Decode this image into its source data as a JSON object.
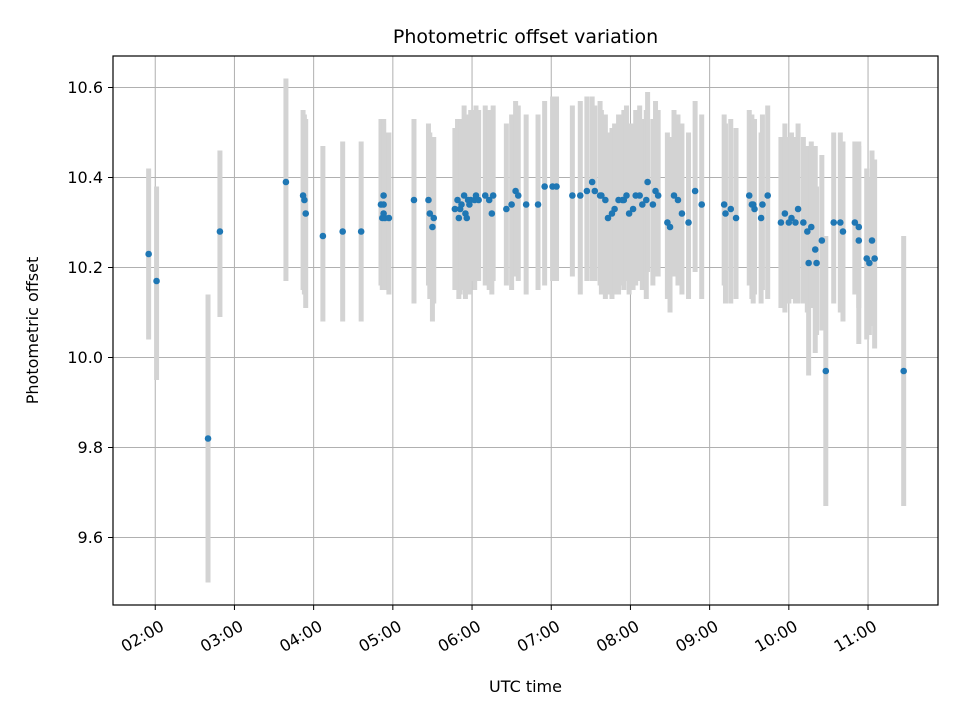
{
  "chart_data": {
    "type": "scatter",
    "title": "Photometric offset variation",
    "xlabel": "UTC time",
    "ylabel": "Photometric offset",
    "x_unit": "UTC time (HH:MM)",
    "x_ticks": [
      "02:00",
      "03:00",
      "04:00",
      "05:00",
      "06:00",
      "07:00",
      "08:00",
      "09:00",
      "10:00",
      "11:00"
    ],
    "y_ticks": [
      "9.6",
      "9.8",
      "10.0",
      "10.2",
      "10.4",
      "10.6"
    ],
    "xlim": [
      "01:28",
      "11:53"
    ],
    "ylim": [
      9.45,
      10.67
    ],
    "grid": true,
    "colors": {
      "points": "#1f77b4",
      "errorbars": "#d3d3d3",
      "grid": "#b0b0b0"
    },
    "series": [
      {
        "x": [
          "01:55",
          "02:01",
          "02:40",
          "02:49",
          "03:39",
          "03:52",
          "03:53",
          "03:54",
          "04:07",
          "04:22",
          "04:36",
          "04:51",
          "04:52",
          "04:53",
          "04:53",
          "04:53",
          "04:54",
          "04:57",
          "05:16",
          "05:27",
          "05:28",
          "05:30",
          "05:31",
          "05:47",
          "05:49",
          "05:50",
          "05:51",
          "05:52",
          "05:54",
          "05:55",
          "05:56",
          "05:57",
          "05:58",
          "05:59",
          "06:02",
          "06:03",
          "06:05",
          "06:10",
          "06:13",
          "06:15",
          "06:16",
          "06:26",
          "06:30",
          "06:33",
          "06:35",
          "06:41",
          "06:50",
          "06:55",
          "07:01",
          "07:04",
          "07:16",
          "07:22",
          "07:27",
          "07:31",
          "07:33",
          "07:37",
          "07:38",
          "07:41",
          "07:43",
          "07:46",
          "07:48",
          "07:51",
          "07:54",
          "07:55",
          "07:57",
          "07:59",
          "08:02",
          "08:04",
          "08:07",
          "08:09",
          "08:12",
          "08:13",
          "08:17",
          "08:19",
          "08:21",
          "08:28",
          "08:30",
          "08:33",
          "08:36",
          "08:39",
          "08:44",
          "08:49",
          "08:54",
          "09:11",
          "09:12",
          "09:16",
          "09:20",
          "09:30",
          "09:32",
          "09:33",
          "09:34",
          "09:39",
          "09:40",
          "09:44",
          "09:54",
          "09:57",
          "10:00",
          "10:02",
          "10:05",
          "10:07",
          "10:11",
          "10:14",
          "10:15",
          "10:17",
          "10:20",
          "10:21",
          "10:25",
          "10:28",
          "10:34",
          "10:39",
          "10:41",
          "10:50",
          "10:53",
          "10:53",
          "10:59",
          "11:01",
          "11:03",
          "11:05",
          "11:27"
        ],
        "y": [
          10.23,
          10.17,
          9.82,
          10.28,
          10.39,
          10.36,
          10.35,
          10.32,
          10.27,
          10.28,
          10.28,
          10.34,
          10.31,
          10.36,
          10.32,
          10.34,
          10.31,
          10.31,
          10.35,
          10.35,
          10.32,
          10.29,
          10.31,
          10.33,
          10.35,
          10.31,
          10.33,
          10.34,
          10.36,
          10.32,
          10.31,
          10.35,
          10.34,
          10.35,
          10.35,
          10.36,
          10.35,
          10.36,
          10.35,
          10.32,
          10.36,
          10.33,
          10.34,
          10.37,
          10.36,
          10.34,
          10.34,
          10.38,
          10.38,
          10.38,
          10.36,
          10.36,
          10.37,
          10.39,
          10.37,
          10.36,
          10.36,
          10.35,
          10.31,
          10.32,
          10.33,
          10.35,
          10.35,
          10.35,
          10.36,
          10.32,
          10.33,
          10.36,
          10.36,
          10.34,
          10.35,
          10.39,
          10.34,
          10.37,
          10.36,
          10.3,
          10.29,
          10.36,
          10.35,
          10.32,
          10.3,
          10.37,
          10.34,
          10.34,
          10.32,
          10.33,
          10.31,
          10.36,
          10.34,
          10.34,
          10.33,
          10.31,
          10.34,
          10.36,
          10.3,
          10.32,
          10.3,
          10.31,
          10.3,
          10.33,
          10.3,
          10.28,
          10.21,
          10.29,
          10.24,
          10.21,
          10.26,
          9.97,
          10.3,
          10.3,
          10.28,
          10.3,
          10.26,
          10.29,
          10.22,
          10.21,
          10.26,
          10.22,
          9.97
        ],
        "y_low": [
          10.04,
          9.95,
          9.5,
          10.09,
          10.17,
          10.15,
          10.14,
          10.11,
          10.08,
          10.08,
          10.08,
          10.16,
          10.15,
          10.16,
          10.15,
          10.15,
          10.15,
          10.14,
          10.12,
          10.16,
          10.13,
          10.08,
          10.12,
          10.15,
          10.16,
          10.13,
          10.14,
          10.15,
          10.17,
          10.13,
          10.14,
          10.17,
          10.14,
          10.17,
          10.15,
          10.17,
          10.17,
          10.16,
          10.15,
          10.14,
          10.17,
          10.16,
          10.15,
          10.18,
          10.17,
          10.14,
          10.15,
          10.16,
          10.17,
          10.17,
          10.18,
          10.14,
          10.17,
          10.17,
          10.17,
          10.16,
          10.14,
          10.13,
          10.14,
          10.13,
          10.14,
          10.14,
          10.16,
          10.15,
          10.17,
          10.14,
          10.15,
          10.16,
          10.17,
          10.15,
          10.13,
          10.19,
          10.16,
          10.18,
          10.18,
          10.13,
          10.1,
          10.18,
          10.16,
          10.14,
          10.13,
          10.19,
          10.13,
          10.16,
          10.12,
          10.12,
          10.13,
          10.16,
          10.13,
          10.12,
          10.14,
          10.12,
          10.15,
          10.13,
          10.11,
          10.1,
          10.12,
          10.13,
          10.12,
          10.12,
          10.12,
          10.1,
          9.96,
          10.11,
          10.01,
          10.05,
          10.06,
          9.67,
          10.12,
          10.1,
          10.08,
          10.14,
          10.03,
          10.11,
          10.04,
          10.05,
          10.07,
          10.02,
          9.67
        ],
        "y_high": [
          10.42,
          10.38,
          10.14,
          10.46,
          10.62,
          10.55,
          10.54,
          10.53,
          10.47,
          10.48,
          10.48,
          10.53,
          10.51,
          10.53,
          10.52,
          10.53,
          10.5,
          10.5,
          10.53,
          10.52,
          10.5,
          10.47,
          10.49,
          10.51,
          10.53,
          10.5,
          10.52,
          10.53,
          10.56,
          10.52,
          10.5,
          10.54,
          10.53,
          10.55,
          10.55,
          10.56,
          10.55,
          10.56,
          10.55,
          10.52,
          10.56,
          10.52,
          10.54,
          10.57,
          10.56,
          10.54,
          10.54,
          10.57,
          10.58,
          10.58,
          10.56,
          10.57,
          10.58,
          10.58,
          10.56,
          10.57,
          10.55,
          10.54,
          10.5,
          10.51,
          10.52,
          10.54,
          10.54,
          10.55,
          10.56,
          10.52,
          10.52,
          10.55,
          10.56,
          10.53,
          10.55,
          10.59,
          10.53,
          10.57,
          10.55,
          10.5,
          10.49,
          10.55,
          10.54,
          10.52,
          10.5,
          10.57,
          10.54,
          10.54,
          10.52,
          10.53,
          10.51,
          10.55,
          10.54,
          10.53,
          10.53,
          10.5,
          10.54,
          10.56,
          10.49,
          10.52,
          10.49,
          10.5,
          10.49,
          10.52,
          10.49,
          10.47,
          10.42,
          10.48,
          10.47,
          10.38,
          10.45,
          10.27,
          10.5,
          10.5,
          10.48,
          10.48,
          10.48,
          10.47,
          10.42,
          10.4,
          10.46,
          10.44,
          10.27
        ]
      }
    ]
  }
}
